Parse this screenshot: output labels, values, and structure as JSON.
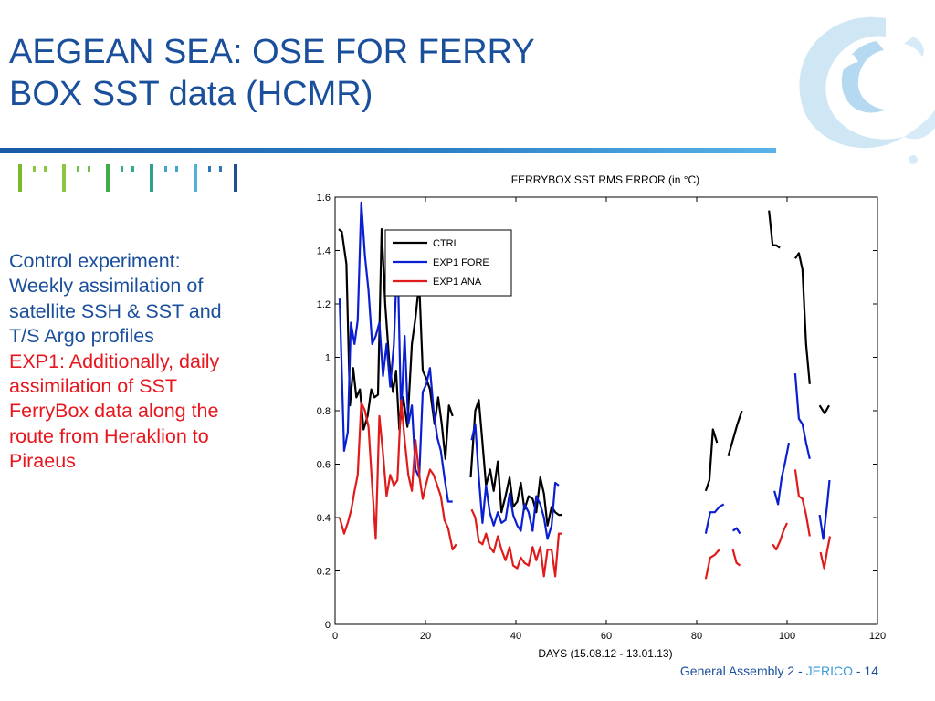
{
  "slide": {
    "title_lines": [
      "AEGEAN SEA: OSE FOR FERRY",
      "BOX SST data (HCMR)"
    ],
    "body_lines_blue": [
      "Control experiment:",
      "Weekly assimilation of",
      "satellite SSH & SST and",
      "T/S Argo profiles"
    ],
    "body_lines_red": [
      "EXP1: Additionally, daily",
      "assimilation of SST",
      "FerryBox data along the",
      "route from Heraklion to",
      "Piraeus"
    ],
    "footer": {
      "prefix": "General Assembly 2 - ",
      "brand": "JERICO",
      "suffix": " - 14"
    },
    "colors": {
      "title": "#1a4f9c",
      "red_text": "#e8161d",
      "brand_accent": "#3a9ad9"
    }
  },
  "chart_data": {
    "type": "line",
    "title": "FERRYBOX SST RMS ERROR (in °C)",
    "xlabel": "DAYS (15.08.12 - 13.01.13)",
    "ylabel": "",
    "xlim": [
      0,
      120
    ],
    "ylim": [
      0,
      1.6
    ],
    "xticks": [
      "0",
      "20",
      "40",
      "60",
      "80",
      "100",
      "120"
    ],
    "yticks": [
      "0",
      "0.2",
      "0.4",
      "0.6",
      "0.8",
      "1",
      "1.2",
      "1.4",
      "1.6"
    ],
    "grid": false,
    "legend_position": "top-left",
    "series": [
      {
        "name": "CTRL",
        "color": "#000000",
        "segments": [
          [
            [
              0.8,
              1.48
            ],
            [
              1.5,
              1.47
            ],
            [
              2.5,
              1.35
            ],
            [
              3.3,
              0.82
            ],
            [
              4.0,
              0.96
            ],
            [
              4.7,
              0.85
            ],
            [
              5.5,
              0.88
            ],
            [
              6.3,
              0.73
            ],
            [
              7.2,
              0.78
            ],
            [
              8.0,
              0.88
            ],
            [
              8.7,
              0.85
            ],
            [
              9.5,
              0.86
            ],
            [
              10.3,
              1.48
            ],
            [
              11.1,
              1.2
            ],
            [
              12.0,
              0.98
            ],
            [
              12.8,
              0.87
            ],
            [
              13.5,
              0.95
            ],
            [
              14.2,
              0.73
            ],
            [
              15.1,
              0.85
            ],
            [
              16.0,
              0.74
            ],
            [
              17.0,
              1.05
            ],
            [
              17.8,
              1.15
            ],
            [
              18.6,
              1.28
            ],
            [
              19.4,
              0.95
            ],
            [
              20.2,
              0.92
            ],
            [
              21.0,
              0.88
            ],
            [
              22.0,
              0.75
            ],
            [
              22.8,
              0.85
            ],
            [
              23.6,
              0.75
            ],
            [
              24.4,
              0.62
            ],
            [
              25.2,
              0.82
            ],
            [
              26.0,
              0.78
            ]
          ],
          [
            [
              30.0,
              0.55
            ],
            [
              31.0,
              0.8
            ],
            [
              31.8,
              0.84
            ],
            [
              32.6,
              0.68
            ],
            [
              33.4,
              0.52
            ],
            [
              34.3,
              0.58
            ],
            [
              35.1,
              0.5
            ],
            [
              36.0,
              0.61
            ],
            [
              36.8,
              0.42
            ],
            [
              37.7,
              0.48
            ],
            [
              38.6,
              0.55
            ],
            [
              39.4,
              0.44
            ],
            [
              40.3,
              0.46
            ],
            [
              41.1,
              0.53
            ],
            [
              41.9,
              0.43
            ],
            [
              42.8,
              0.48
            ],
            [
              43.7,
              0.47
            ],
            [
              44.5,
              0.42
            ],
            [
              45.4,
              0.55
            ],
            [
              46.2,
              0.49
            ],
            [
              47.0,
              0.37
            ],
            [
              47.9,
              0.44
            ],
            [
              48.7,
              0.42
            ],
            [
              49.5,
              0.41
            ],
            [
              50.2,
              0.41
            ]
          ],
          [
            [
              82.0,
              0.5
            ],
            [
              82.8,
              0.54
            ],
            [
              83.6,
              0.73
            ],
            [
              84.5,
              0.68
            ]
          ],
          [
            [
              87.0,
              0.63
            ],
            [
              88.0,
              0.69
            ],
            [
              89.0,
              0.75
            ],
            [
              90.0,
              0.8
            ]
          ],
          [
            [
              96.0,
              1.55
            ],
            [
              96.8,
              1.42
            ],
            [
              97.6,
              1.42
            ],
            [
              98.4,
              1.41
            ]
          ],
          [
            [
              101.8,
              1.37
            ],
            [
              102.6,
              1.39
            ],
            [
              103.4,
              1.33
            ],
            [
              104.2,
              1.05
            ],
            [
              105.0,
              0.9
            ]
          ],
          [
            [
              107.2,
              0.82
            ],
            [
              108.3,
              0.79
            ],
            [
              109.3,
              0.82
            ]
          ]
        ]
      },
      {
        "name": "EXP1 FORE",
        "color": "#0a1fd1",
        "segments": [
          [
            [
              1.0,
              1.22
            ],
            [
              2.0,
              0.65
            ],
            [
              2.8,
              0.72
            ],
            [
              3.5,
              1.13
            ],
            [
              4.3,
              1.05
            ],
            [
              5.0,
              1.14
            ],
            [
              5.8,
              1.58
            ],
            [
              6.6,
              1.38
            ],
            [
              7.4,
              1.25
            ],
            [
              8.2,
              1.05
            ],
            [
              9.0,
              1.08
            ],
            [
              9.8,
              1.13
            ],
            [
              10.6,
              0.93
            ],
            [
              11.4,
              1.05
            ],
            [
              12.2,
              0.89
            ],
            [
              13.0,
              1.05
            ],
            [
              13.8,
              1.4
            ],
            [
              14.6,
              0.78
            ],
            [
              15.4,
              1.08
            ],
            [
              16.2,
              0.75
            ],
            [
              17.0,
              0.82
            ],
            [
              17.8,
              0.58
            ],
            [
              18.6,
              0.55
            ],
            [
              19.4,
              0.87
            ],
            [
              20.2,
              0.9
            ],
            [
              21.0,
              0.96
            ],
            [
              21.8,
              0.8
            ],
            [
              22.6,
              0.7
            ],
            [
              23.4,
              0.65
            ],
            [
              24.2,
              0.55
            ],
            [
              25.0,
              0.46
            ],
            [
              26.0,
              0.46
            ]
          ],
          [
            [
              30.2,
              0.69
            ],
            [
              31.0,
              0.75
            ],
            [
              31.8,
              0.55
            ],
            [
              32.6,
              0.38
            ],
            [
              33.4,
              0.52
            ],
            [
              34.2,
              0.42
            ],
            [
              35.1,
              0.37
            ],
            [
              36.0,
              0.42
            ],
            [
              36.8,
              0.38
            ],
            [
              37.7,
              0.39
            ],
            [
              38.6,
              0.49
            ],
            [
              39.4,
              0.41
            ],
            [
              40.3,
              0.37
            ],
            [
              41.1,
              0.35
            ],
            [
              41.9,
              0.45
            ],
            [
              42.8,
              0.42
            ],
            [
              43.7,
              0.35
            ],
            [
              44.5,
              0.48
            ],
            [
              45.4,
              0.45
            ],
            [
              46.2,
              0.4
            ],
            [
              47.0,
              0.32
            ],
            [
              47.9,
              0.37
            ],
            [
              48.7,
              0.53
            ],
            [
              49.5,
              0.52
            ]
          ],
          [
            [
              82.0,
              0.34
            ],
            [
              83.0,
              0.42
            ],
            [
              84.0,
              0.42
            ],
            [
              85.0,
              0.44
            ],
            [
              86.0,
              0.45
            ]
          ],
          [
            [
              88.0,
              0.35
            ],
            [
              88.8,
              0.36
            ],
            [
              89.6,
              0.34
            ]
          ],
          [
            [
              97.2,
              0.5
            ],
            [
              98.0,
              0.45
            ],
            [
              98.8,
              0.55
            ],
            [
              99.6,
              0.61
            ],
            [
              100.4,
              0.68
            ]
          ],
          [
            [
              101.8,
              0.94
            ],
            [
              102.6,
              0.77
            ],
            [
              103.4,
              0.75
            ],
            [
              104.2,
              0.68
            ],
            [
              105.0,
              0.62
            ]
          ],
          [
            [
              107.2,
              0.41
            ],
            [
              108.0,
              0.32
            ],
            [
              108.8,
              0.44
            ],
            [
              109.4,
              0.54
            ]
          ]
        ]
      },
      {
        "name": "EXP1 ANA",
        "color": "#e01b1b",
        "segments": [
          [
            [
              1.0,
              0.4
            ],
            [
              2.0,
              0.34
            ],
            [
              2.8,
              0.38
            ],
            [
              3.6,
              0.43
            ],
            [
              4.3,
              0.5
            ],
            [
              5.0,
              0.56
            ],
            [
              5.8,
              0.83
            ],
            [
              6.6,
              0.8
            ],
            [
              7.4,
              0.74
            ],
            [
              8.2,
              0.52
            ],
            [
              9.0,
              0.32
            ],
            [
              9.8,
              0.78
            ],
            [
              10.6,
              0.64
            ],
            [
              11.4,
              0.48
            ],
            [
              12.2,
              0.56
            ],
            [
              13.0,
              0.52
            ],
            [
              13.8,
              0.54
            ],
            [
              14.6,
              0.84
            ],
            [
              15.4,
              0.69
            ],
            [
              16.2,
              0.56
            ],
            [
              17.0,
              0.5
            ],
            [
              17.8,
              0.69
            ],
            [
              18.6,
              0.56
            ],
            [
              19.4,
              0.47
            ],
            [
              20.2,
              0.53
            ],
            [
              21.0,
              0.58
            ],
            [
              21.8,
              0.56
            ],
            [
              22.6,
              0.52
            ],
            [
              23.4,
              0.48
            ],
            [
              24.2,
              0.39
            ],
            [
              25.0,
              0.36
            ],
            [
              26.0,
              0.28
            ],
            [
              26.8,
              0.3
            ]
          ],
          [
            [
              30.2,
              0.43
            ],
            [
              31.0,
              0.4
            ],
            [
              31.8,
              0.31
            ],
            [
              32.6,
              0.3
            ],
            [
              33.4,
              0.34
            ],
            [
              34.2,
              0.29
            ],
            [
              35.1,
              0.27
            ],
            [
              36.0,
              0.33
            ],
            [
              36.8,
              0.28
            ],
            [
              37.7,
              0.24
            ],
            [
              38.6,
              0.29
            ],
            [
              39.4,
              0.22
            ],
            [
              40.3,
              0.21
            ],
            [
              41.1,
              0.25
            ],
            [
              41.9,
              0.23
            ],
            [
              42.8,
              0.22
            ],
            [
              43.7,
              0.29
            ],
            [
              44.5,
              0.24
            ],
            [
              45.4,
              0.29
            ],
            [
              46.2,
              0.18
            ],
            [
              47.0,
              0.28
            ],
            [
              47.9,
              0.28
            ],
            [
              48.7,
              0.18
            ],
            [
              49.5,
              0.34
            ],
            [
              50.2,
              0.34
            ]
          ],
          [
            [
              82.0,
              0.17
            ],
            [
              83.0,
              0.25
            ],
            [
              84.0,
              0.26
            ],
            [
              85.0,
              0.28
            ]
          ],
          [
            [
              88.0,
              0.28
            ],
            [
              88.8,
              0.23
            ],
            [
              89.6,
              0.22
            ]
          ],
          [
            [
              96.8,
              0.3
            ],
            [
              97.6,
              0.28
            ],
            [
              98.4,
              0.31
            ],
            [
              99.2,
              0.35
            ],
            [
              100.0,
              0.38
            ]
          ],
          [
            [
              101.8,
              0.58
            ],
            [
              102.6,
              0.48
            ],
            [
              103.4,
              0.47
            ],
            [
              104.2,
              0.41
            ],
            [
              105.0,
              0.33
            ]
          ],
          [
            [
              107.4,
              0.27
            ],
            [
              108.2,
              0.21
            ],
            [
              108.9,
              0.28
            ],
            [
              109.5,
              0.33
            ]
          ]
        ]
      }
    ]
  }
}
